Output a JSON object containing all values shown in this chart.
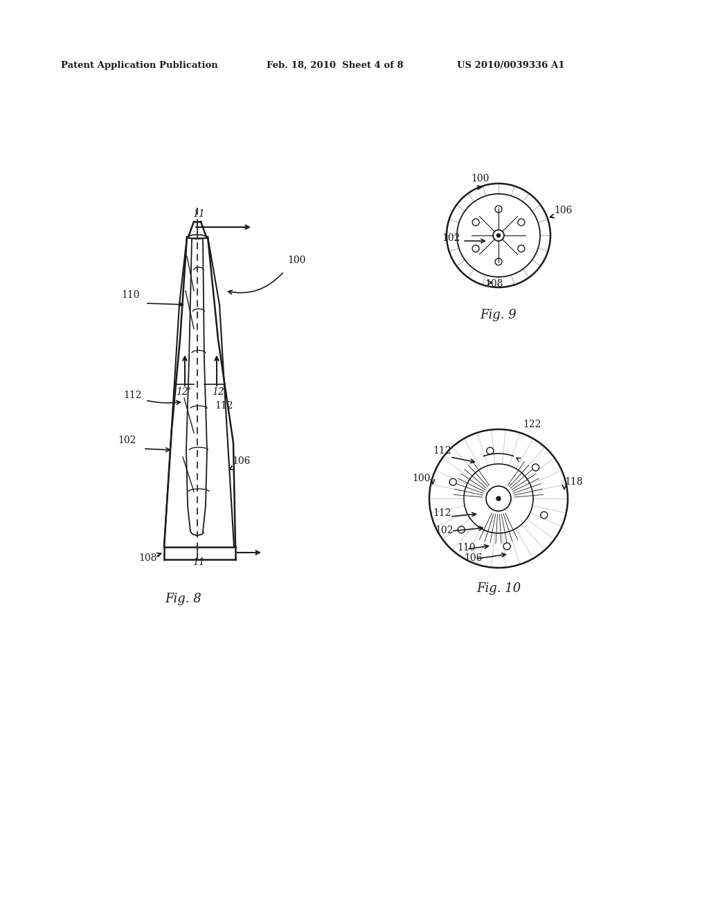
{
  "background_color": "#ffffff",
  "header_left": "Patent Application Publication",
  "header_center": "Feb. 18, 2010  Sheet 4 of 8",
  "header_right": "US 2010/0039336 A1",
  "fig8_label": "Fig. 8",
  "fig9_label": "Fig. 9",
  "fig10_label": "Fig. 10",
  "text_color": "#1a1a1a",
  "line_color": "#1a1a1a"
}
